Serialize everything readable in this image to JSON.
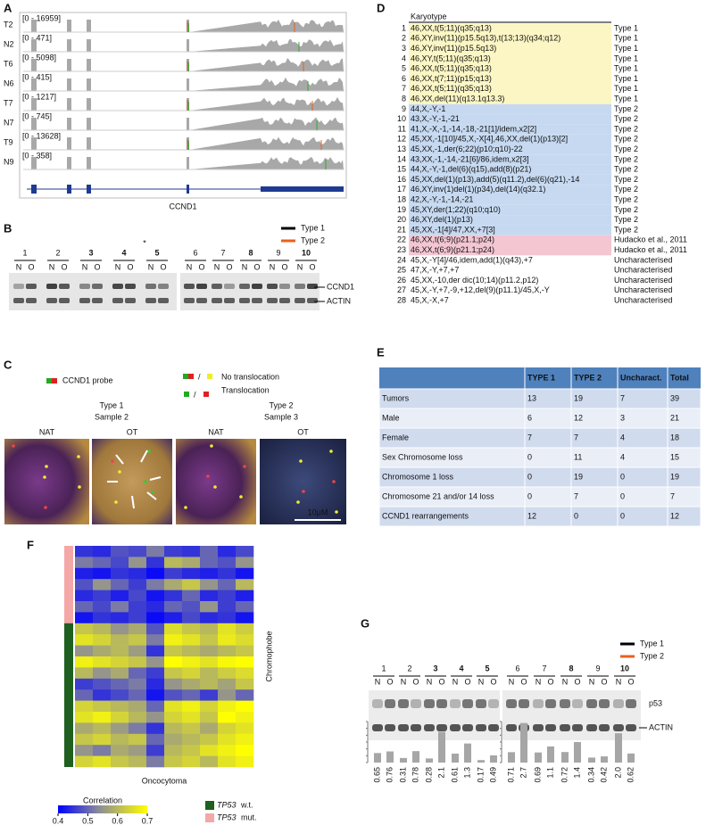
{
  "panel_a": {
    "label": "A",
    "tracks": [
      {
        "name": "T2",
        "range": "[0 - 16959]"
      },
      {
        "name": "N2",
        "range": "[0 - 471]"
      },
      {
        "name": "T6",
        "range": "[0 - 5098]"
      },
      {
        "name": "N6",
        "range": "[0 - 415]"
      },
      {
        "name": "T7",
        "range": "[0 - 1217]"
      },
      {
        "name": "N7",
        "range": "[0 - 745]"
      },
      {
        "name": "T9",
        "range": "[0 - 13628]"
      },
      {
        "name": "N9",
        "range": "[0 - 358]"
      }
    ],
    "gene": "CCND1"
  },
  "panel_b": {
    "label": "B",
    "legend": [
      {
        "name": "Type 1",
        "color": "#000000"
      },
      {
        "name": "Type 2",
        "color": "#e8611c"
      }
    ],
    "lanes": [
      {
        "label": "1",
        "color": "#000000"
      },
      {
        "label": "2",
        "color": "#000000"
      },
      {
        "label": "3",
        "color": "#e8611c"
      },
      {
        "label": "4",
        "color": "#e8611c"
      },
      {
        "label": "5",
        "color": "#e8611c"
      },
      {
        "label": "6",
        "color": "#000000"
      },
      {
        "label": "7",
        "color": "#000000"
      },
      {
        "label": "8",
        "color": "#e8611c"
      },
      {
        "label": "9",
        "color": "#000000"
      },
      {
        "label": "10",
        "color": "#e8611c"
      }
    ],
    "sub_labels": [
      "N",
      "O"
    ],
    "asterisk": "*",
    "bands": [
      "CCND1",
      "ACTIN"
    ]
  },
  "panel_c": {
    "label": "C",
    "probe": "CCND1 probe",
    "separator": "/",
    "legend": [
      "No translocation",
      "Translocation"
    ],
    "groups": [
      {
        "type": "Type 1",
        "sample": "Sample 2"
      },
      {
        "type": "Type 2",
        "sample": "Sample 3"
      }
    ],
    "image_labels": [
      "NAT",
      "OT",
      "NAT",
      "OT"
    ],
    "scale_bar": "10μM"
  },
  "panel_d": {
    "label": "D",
    "header": "Karyotype",
    "type_colors": {
      "Type 1": "#fbf6c4",
      "Type 2": "#c6d9f1",
      "Hudacko et al., 2011": "#f3c6d2"
    },
    "rows": [
      [
        1,
        "46,XX,t(5;11)(q35;q13)",
        "Type 1"
      ],
      [
        2,
        "46,XY,inv(11)(p15.5q13),t(13;13)(q34;q12)",
        "Type 1"
      ],
      [
        3,
        "46,XY,inv(11)(p15.5q13)",
        "Type 1"
      ],
      [
        4,
        "46,XY,t(5;11)(q35;q13)",
        "Type 1"
      ],
      [
        5,
        "46,XX,t(5;11)(q35;q13)",
        "Type 1"
      ],
      [
        6,
        "46,XX,t(7;11)(p15;q13)",
        "Type 1"
      ],
      [
        7,
        "46,XX,t(5;11)(q35;q13)",
        "Type 1"
      ],
      [
        8,
        "46,XX,del(11)(q13.1q13.3)",
        "Type 1"
      ],
      [
        9,
        "44,X,-Y,-1",
        "Type 2"
      ],
      [
        10,
        "43,X,-Y,-1,-21",
        "Type 2"
      ],
      [
        11,
        "41,X,-X,-1,-14,-18,-21[1]/idem,x2[2]",
        "Type 2"
      ],
      [
        12,
        "45,XX,-1[10]/45,X,-X[4],46,XX,del(1)(p13)[2]",
        "Type 2"
      ],
      [
        13,
        "45,XX,-1,der(6;22)(p10;q10)-22",
        "Type 2"
      ],
      [
        14,
        "43,XX,-1,-14,-21[6]/86,idem,x2[3]",
        "Type 2"
      ],
      [
        15,
        "44,X,-Y,-1,del(6)(q15),add(8)(p21)",
        "Type 2"
      ],
      [
        16,
        "45,XX,del(1)(p13),add(5)(q11.2),del(6)(q21),-14",
        "Type 2"
      ],
      [
        17,
        "46,XY,inv(1)del(1)(p34),del(14)(q32.1)",
        "Type 2"
      ],
      [
        18,
        "42,X,-Y,-1,-14,-21",
        "Type 2"
      ],
      [
        19,
        "45,XY,der(1;22)(q10;q10)",
        "Type 2"
      ],
      [
        20,
        "46,XY,del(1)(p13)",
        "Type 2"
      ],
      [
        21,
        "45,XX,-1[4]/47,XX,+7[3]",
        "Type 2"
      ],
      [
        22,
        "46,XX,t(6;9)(p21.1;p24)",
        "Hudacko et al., 2011"
      ],
      [
        23,
        "46,XX,t(6;9)(p21.1;p24)",
        "Hudacko et al., 2011"
      ],
      [
        24,
        "45,X,-Y[4]/46,idem,add(1)(q43),+7",
        "Uncharacterised"
      ],
      [
        25,
        "47,X,-Y,+7,+7",
        "Uncharacterised"
      ],
      [
        26,
        "45,XX,-10,der dic(10;14)(p11.2,p12)",
        "Uncharacterised"
      ],
      [
        27,
        "45,X,-Y,+7,-9,+12,del(9)(p11.1)/45,X,-Y",
        "Uncharacterised"
      ],
      [
        28,
        "45,X,-X,+7",
        "Uncharacterised"
      ]
    ]
  },
  "panel_e": {
    "label": "E",
    "columns": [
      "TYPE 1",
      "TYPE 2",
      "Uncharact.",
      "Total"
    ],
    "rows": [
      {
        "name": "Tumors",
        "values": [
          13,
          19,
          7,
          39
        ]
      },
      {
        "name": "Male",
        "values": [
          6,
          12,
          3,
          21
        ]
      },
      {
        "name": "Female",
        "values": [
          7,
          7,
          4,
          18
        ]
      },
      {
        "name": "Sex Chromosome loss",
        "values": [
          0,
          11,
          4,
          15
        ]
      },
      {
        "name": "Chromosome 1 loss",
        "values": [
          0,
          19,
          0,
          19
        ]
      },
      {
        "name": "Chromosome 21 and/or 14 loss",
        "values": [
          0,
          7,
          0,
          7
        ]
      },
      {
        "name": "CCND1 rearrangements",
        "values": [
          12,
          0,
          0,
          12
        ]
      }
    ]
  },
  "panel_f": {
    "label": "F",
    "type": "heatmap",
    "y_label": "Chromophobe",
    "x_label": "Oncocytoma",
    "colorbar_title": "Correlation",
    "clim": [
      0.4,
      0.7
    ],
    "cticks": [
      0.4,
      0.5,
      0.6,
      0.7
    ],
    "colormap": [
      "#0000ff",
      "#8a8a9a",
      "#ffff00"
    ],
    "row_groups": [
      {
        "gene": "TP53",
        "status": "mut.",
        "color": "#f4a7a7",
        "rows": 7
      },
      {
        "gene": "TP53",
        "status": "w.t.",
        "color": "#1f5f1f",
        "rows": 13
      }
    ],
    "matrix": [
      [
        0.45,
        0.44,
        0.48,
        0.47,
        0.52,
        0.46,
        0.45,
        0.5,
        0.44,
        0.47
      ],
      [
        0.52,
        0.5,
        0.47,
        0.55,
        0.45,
        0.6,
        0.58,
        0.5,
        0.48,
        0.55
      ],
      [
        0.43,
        0.42,
        0.45,
        0.44,
        0.41,
        0.46,
        0.44,
        0.43,
        0.45,
        0.42
      ],
      [
        0.48,
        0.55,
        0.5,
        0.46,
        0.52,
        0.58,
        0.62,
        0.55,
        0.5,
        0.6
      ],
      [
        0.44,
        0.46,
        0.43,
        0.47,
        0.42,
        0.45,
        0.5,
        0.44,
        0.46,
        0.43
      ],
      [
        0.5,
        0.47,
        0.52,
        0.46,
        0.44,
        0.5,
        0.48,
        0.55,
        0.46,
        0.5
      ],
      [
        0.42,
        0.45,
        0.44,
        0.46,
        0.41,
        0.43,
        0.47,
        0.44,
        0.45,
        0.42
      ],
      [
        0.62,
        0.6,
        0.55,
        0.58,
        0.48,
        0.65,
        0.62,
        0.6,
        0.66,
        0.63
      ],
      [
        0.66,
        0.64,
        0.6,
        0.62,
        0.52,
        0.68,
        0.66,
        0.62,
        0.67,
        0.65
      ],
      [
        0.55,
        0.58,
        0.6,
        0.56,
        0.45,
        0.62,
        0.6,
        0.58,
        0.6,
        0.62
      ],
      [
        0.68,
        0.66,
        0.64,
        0.62,
        0.55,
        0.7,
        0.68,
        0.66,
        0.69,
        0.7
      ],
      [
        0.6,
        0.55,
        0.58,
        0.5,
        0.46,
        0.62,
        0.64,
        0.6,
        0.63,
        0.65
      ],
      [
        0.46,
        0.48,
        0.5,
        0.52,
        0.44,
        0.55,
        0.58,
        0.6,
        0.57,
        0.62
      ],
      [
        0.5,
        0.45,
        0.47,
        0.5,
        0.42,
        0.48,
        0.5,
        0.46,
        0.55,
        0.5
      ],
      [
        0.64,
        0.62,
        0.6,
        0.58,
        0.5,
        0.66,
        0.68,
        0.64,
        0.68,
        0.7
      ],
      [
        0.66,
        0.68,
        0.64,
        0.6,
        0.55,
        0.64,
        0.66,
        0.62,
        0.7,
        0.68
      ],
      [
        0.58,
        0.6,
        0.56,
        0.52,
        0.45,
        0.6,
        0.62,
        0.58,
        0.64,
        0.66
      ],
      [
        0.62,
        0.64,
        0.6,
        0.62,
        0.5,
        0.58,
        0.6,
        0.62,
        0.66,
        0.68
      ],
      [
        0.55,
        0.52,
        0.58,
        0.56,
        0.46,
        0.6,
        0.62,
        0.66,
        0.68,
        0.7
      ],
      [
        0.64,
        0.66,
        0.62,
        0.6,
        0.52,
        0.62,
        0.64,
        0.6,
        0.66,
        0.68
      ]
    ]
  },
  "panel_g": {
    "label": "G",
    "type": "bar",
    "legend": [
      {
        "name": "Type 1",
        "color": "#000000"
      },
      {
        "name": "Type 2",
        "color": "#e8611c"
      }
    ],
    "lanes": [
      {
        "label": "1",
        "color": "#000000"
      },
      {
        "label": "2",
        "color": "#000000"
      },
      {
        "label": "3",
        "color": "#e8611c"
      },
      {
        "label": "4",
        "color": "#e8611c"
      },
      {
        "label": "5",
        "color": "#e8611c"
      },
      {
        "label": "6",
        "color": "#000000"
      },
      {
        "label": "7",
        "color": "#000000"
      },
      {
        "label": "8",
        "color": "#e8611c"
      },
      {
        "label": "9",
        "color": "#000000"
      },
      {
        "label": "10",
        "color": "#e8611c"
      }
    ],
    "sub_labels": [
      "N",
      "O"
    ],
    "bands": [
      "p53",
      "ACTIN"
    ],
    "bar_color": "#a6a6a6",
    "ylim": [
      0,
      2.8
    ],
    "values": [
      0.65,
      0.76,
      0.31,
      0.78,
      0.28,
      2.1,
      0.61,
      1.3,
      0.17,
      0.49,
      0.71,
      2.7,
      0.69,
      1.1,
      0.72,
      1.4,
      0.34,
      0.42,
      2.0,
      0.62
    ],
    "value_labels": [
      "0.65",
      "0.76",
      "0.31",
      "0.78",
      "0.28",
      "2.1",
      "0.61",
      "1.3",
      "0.17",
      "0.49",
      "0.71",
      "2.7",
      "0.69",
      "1.1",
      "0.72",
      "1.4",
      "0.34",
      "0.42",
      "2.0",
      "0.62"
    ]
  }
}
